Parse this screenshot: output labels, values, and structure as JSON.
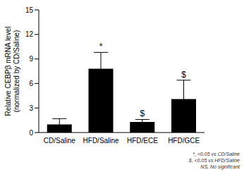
{
  "chart_data": {
    "type": "bar",
    "categories": [
      "CD/Saline",
      "HFD/Saline",
      "HFD/ECE",
      "HFD/GCE"
    ],
    "values": [
      1.0,
      7.8,
      1.3,
      4.1
    ],
    "errors": [
      0.7,
      2.0,
      0.3,
      2.3
    ],
    "color": "#000000",
    "ylim": [
      0,
      15
    ],
    "yticks": [
      0,
      3,
      6,
      9,
      12,
      15
    ],
    "grid": false,
    "y_label": [
      "Relative CEBPβ mRNA level",
      "(normalized by CD/Saline)"
    ],
    "annotations": [
      null,
      "*",
      "$",
      "$"
    ],
    "notes": [
      "*, <0.05 vs CD/Saline",
      "$, <0.05 vs HFD/Saline",
      "NS, No significant"
    ]
  }
}
